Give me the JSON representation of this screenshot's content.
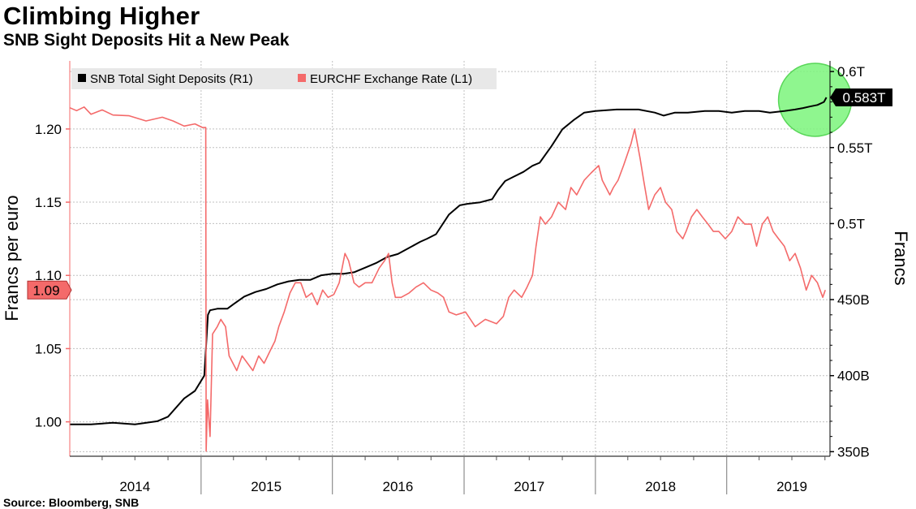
{
  "header": {
    "title": "Climbing Higher",
    "subtitle": "SNB Sight Deposits Hit a New Peak"
  },
  "footer": {
    "source": "Source: Bloomberg, SNB"
  },
  "colors": {
    "deposits": "#000000",
    "eurchf": "#f46a6a",
    "highlight": "#7cf57c",
    "grid": "#c0c0c0"
  },
  "chart_data": {
    "type": "line",
    "grid": true,
    "legend_position": "top-left",
    "x_tick_labels": [
      "2014",
      "2015",
      "2016",
      "2017",
      "2018",
      "2019"
    ],
    "x_tick_dates": [
      "2014-07-01",
      "2015-07-01",
      "2016-07-01",
      "2017-07-01",
      "2018-07-01",
      "2019-07-01"
    ],
    "xlim": [
      "2014-01-01",
      "2019-10-15"
    ],
    "y_left": {
      "label": "Francs per euro",
      "ticks": [
        1.0,
        1.05,
        1.1,
        1.15,
        1.2
      ],
      "tick_labels": [
        "1.00",
        "1.05",
        "1.10",
        "1.15",
        "1.20"
      ],
      "range": [
        0.9765,
        1.2465
      ]
    },
    "y_right": {
      "label": "Francs",
      "ticks": [
        350,
        400,
        450,
        500,
        550,
        600
      ],
      "tick_labels": [
        "350B",
        "400B",
        "450B",
        "0.5T",
        "0.55T",
        "0.6T"
      ],
      "unit": "billion CHF",
      "range": [
        347,
        607
      ]
    },
    "last_value_labels": {
      "eurchf": "1.09",
      "deposits": "0.583T"
    },
    "series": [
      {
        "name": "SNB Total Sight Deposits (R1)",
        "axis": "right",
        "points": [
          [
            "2014-01-01",
            368
          ],
          [
            "2014-03-01",
            368
          ],
          [
            "2014-05-01",
            369
          ],
          [
            "2014-07-01",
            368
          ],
          [
            "2014-09-01",
            370
          ],
          [
            "2014-10-01",
            373
          ],
          [
            "2014-11-15",
            385
          ],
          [
            "2014-12-15",
            390
          ],
          [
            "2015-01-10",
            400
          ],
          [
            "2015-01-20",
            440
          ],
          [
            "2015-01-26",
            443
          ],
          [
            "2015-02-15",
            444
          ],
          [
            "2015-03-15",
            444
          ],
          [
            "2015-04-01",
            447
          ],
          [
            "2015-05-01",
            452
          ],
          [
            "2015-06-01",
            455
          ],
          [
            "2015-07-01",
            457
          ],
          [
            "2015-08-01",
            460
          ],
          [
            "2015-09-01",
            462
          ],
          [
            "2015-10-01",
            463
          ],
          [
            "2015-11-01",
            463
          ],
          [
            "2015-12-01",
            466
          ],
          [
            "2016-01-01",
            467
          ],
          [
            "2016-02-01",
            467
          ],
          [
            "2016-03-01",
            468
          ],
          [
            "2016-04-01",
            471
          ],
          [
            "2016-05-01",
            474
          ],
          [
            "2016-06-01",
            478
          ],
          [
            "2016-07-01",
            480
          ],
          [
            "2016-08-01",
            484
          ],
          [
            "2016-09-01",
            488
          ],
          [
            "2016-09-20",
            490
          ],
          [
            "2016-10-15",
            493
          ],
          [
            "2016-11-20",
            506
          ],
          [
            "2016-12-20",
            512
          ],
          [
            "2017-01-10",
            513
          ],
          [
            "2017-02-15",
            514
          ],
          [
            "2017-03-20",
            516
          ],
          [
            "2017-04-05",
            522
          ],
          [
            "2017-04-25",
            528
          ],
          [
            "2017-05-20",
            531
          ],
          [
            "2017-06-15",
            534
          ],
          [
            "2017-07-10",
            538
          ],
          [
            "2017-07-30",
            540
          ],
          [
            "2017-09-01",
            551
          ],
          [
            "2017-10-01",
            562
          ],
          [
            "2017-11-01",
            568
          ],
          [
            "2017-12-01",
            573
          ],
          [
            "2018-01-01",
            574
          ],
          [
            "2018-03-01",
            575
          ],
          [
            "2018-05-01",
            575
          ],
          [
            "2018-06-15",
            573
          ],
          [
            "2018-07-10",
            571
          ],
          [
            "2018-08-10",
            573
          ],
          [
            "2018-09-15",
            573
          ],
          [
            "2018-11-01",
            574
          ],
          [
            "2018-12-10",
            574
          ],
          [
            "2019-01-15",
            573
          ],
          [
            "2019-02-20",
            574
          ],
          [
            "2019-04-01",
            574
          ],
          [
            "2019-05-01",
            573
          ],
          [
            "2019-06-10",
            574
          ],
          [
            "2019-07-10",
            575
          ],
          [
            "2019-08-01",
            576
          ],
          [
            "2019-08-20",
            577
          ],
          [
            "2019-09-10",
            578
          ],
          [
            "2019-09-28",
            580
          ],
          [
            "2019-10-05",
            583
          ]
        ]
      },
      {
        "name": "EURCHF Exchange Rate (L1)",
        "axis": "left",
        "points": [
          [
            "2014-01-01",
            1.2145
          ],
          [
            "2014-01-20",
            1.2125
          ],
          [
            "2014-02-10",
            1.215
          ],
          [
            "2014-03-01",
            1.21
          ],
          [
            "2014-04-01",
            1.213
          ],
          [
            "2014-05-01",
            1.2095
          ],
          [
            "2014-06-15",
            1.209
          ],
          [
            "2014-08-01",
            1.2055
          ],
          [
            "2014-09-15",
            1.208
          ],
          [
            "2014-10-15",
            1.2055
          ],
          [
            "2014-11-15",
            1.202
          ],
          [
            "2014-12-15",
            1.2035
          ],
          [
            "2015-01-05",
            1.201
          ],
          [
            "2015-01-14",
            1.201
          ],
          [
            "2015-01-15",
            0.98
          ],
          [
            "2015-01-19",
            1.015
          ],
          [
            "2015-01-26",
            0.99
          ],
          [
            "2015-02-02",
            1.06
          ],
          [
            "2015-02-15",
            1.065
          ],
          [
            "2015-02-25",
            1.07
          ],
          [
            "2015-03-10",
            1.065
          ],
          [
            "2015-03-20",
            1.045
          ],
          [
            "2015-04-10",
            1.035
          ],
          [
            "2015-04-25",
            1.045
          ],
          [
            "2015-05-10",
            1.04
          ],
          [
            "2015-05-25",
            1.035
          ],
          [
            "2015-06-10",
            1.045
          ],
          [
            "2015-06-25",
            1.04
          ],
          [
            "2015-07-15",
            1.05
          ],
          [
            "2015-07-25",
            1.055
          ],
          [
            "2015-08-05",
            1.065
          ],
          [
            "2015-08-20",
            1.075
          ],
          [
            "2015-09-05",
            1.088
          ],
          [
            "2015-09-20",
            1.095
          ],
          [
            "2015-10-05",
            1.095
          ],
          [
            "2015-10-20",
            1.085
          ],
          [
            "2015-11-05",
            1.088
          ],
          [
            "2015-11-20",
            1.08
          ],
          [
            "2015-12-05",
            1.09
          ],
          [
            "2015-12-20",
            1.085
          ],
          [
            "2016-01-05",
            1.087
          ],
          [
            "2016-01-20",
            1.095
          ],
          [
            "2016-02-05",
            1.115
          ],
          [
            "2016-02-15",
            1.11
          ],
          [
            "2016-03-01",
            1.095
          ],
          [
            "2016-03-15",
            1.092
          ],
          [
            "2016-04-01",
            1.095
          ],
          [
            "2016-04-20",
            1.095
          ],
          [
            "2016-05-10",
            1.105
          ],
          [
            "2016-05-25",
            1.11
          ],
          [
            "2016-06-05",
            1.115
          ],
          [
            "2016-06-15",
            1.095
          ],
          [
            "2016-06-24",
            1.085
          ],
          [
            "2016-07-10",
            1.085
          ],
          [
            "2016-08-01",
            1.088
          ],
          [
            "2016-08-20",
            1.092
          ],
          [
            "2016-09-10",
            1.095
          ],
          [
            "2016-10-01",
            1.09
          ],
          [
            "2016-10-20",
            1.088
          ],
          [
            "2016-11-05",
            1.085
          ],
          [
            "2016-11-20",
            1.075
          ],
          [
            "2016-12-10",
            1.073
          ],
          [
            "2017-01-05",
            1.075
          ],
          [
            "2017-02-01",
            1.065
          ],
          [
            "2017-03-01",
            1.07
          ],
          [
            "2017-04-01",
            1.067
          ],
          [
            "2017-04-20",
            1.072
          ],
          [
            "2017-05-05",
            1.085
          ],
          [
            "2017-05-20",
            1.09
          ],
          [
            "2017-06-10",
            1.085
          ],
          [
            "2017-06-25",
            1.092
          ],
          [
            "2017-07-10",
            1.1
          ],
          [
            "2017-07-20",
            1.12
          ],
          [
            "2017-08-01",
            1.14
          ],
          [
            "2017-08-15",
            1.135
          ],
          [
            "2017-09-01",
            1.14
          ],
          [
            "2017-09-20",
            1.15
          ],
          [
            "2017-10-10",
            1.145
          ],
          [
            "2017-10-25",
            1.16
          ],
          [
            "2017-11-10",
            1.155
          ],
          [
            "2017-12-01",
            1.165
          ],
          [
            "2017-12-20",
            1.17
          ],
          [
            "2018-01-10",
            1.175
          ],
          [
            "2018-01-20",
            1.165
          ],
          [
            "2018-02-10",
            1.155
          ],
          [
            "2018-02-20",
            1.16
          ],
          [
            "2018-03-05",
            1.165
          ],
          [
            "2018-03-20",
            1.175
          ],
          [
            "2018-04-10",
            1.19
          ],
          [
            "2018-04-20",
            1.2
          ],
          [
            "2018-05-05",
            1.18
          ],
          [
            "2018-05-15",
            1.165
          ],
          [
            "2018-05-29",
            1.145
          ],
          [
            "2018-06-15",
            1.155
          ],
          [
            "2018-07-01",
            1.16
          ],
          [
            "2018-07-15",
            1.15
          ],
          [
            "2018-08-01",
            1.145
          ],
          [
            "2018-08-15",
            1.13
          ],
          [
            "2018-09-01",
            1.125
          ],
          [
            "2018-09-10",
            1.13
          ],
          [
            "2018-09-25",
            1.14
          ],
          [
            "2018-10-10",
            1.145
          ],
          [
            "2018-10-25",
            1.14
          ],
          [
            "2018-11-10",
            1.135
          ],
          [
            "2018-11-25",
            1.13
          ],
          [
            "2018-12-10",
            1.13
          ],
          [
            "2018-12-28",
            1.125
          ],
          [
            "2019-01-15",
            1.13
          ],
          [
            "2019-02-01",
            1.14
          ],
          [
            "2019-02-20",
            1.135
          ],
          [
            "2019-03-10",
            1.135
          ],
          [
            "2019-03-25",
            1.12
          ],
          [
            "2019-04-10",
            1.135
          ],
          [
            "2019-04-25",
            1.14
          ],
          [
            "2019-05-10",
            1.13
          ],
          [
            "2019-05-25",
            1.125
          ],
          [
            "2019-06-10",
            1.12
          ],
          [
            "2019-06-25",
            1.11
          ],
          [
            "2019-07-10",
            1.115
          ],
          [
            "2019-07-25",
            1.105
          ],
          [
            "2019-08-10",
            1.09
          ],
          [
            "2019-08-25",
            1.1
          ],
          [
            "2019-09-10",
            1.095
          ],
          [
            "2019-09-25",
            1.085
          ],
          [
            "2019-10-02",
            1.09
          ]
        ]
      }
    ]
  }
}
